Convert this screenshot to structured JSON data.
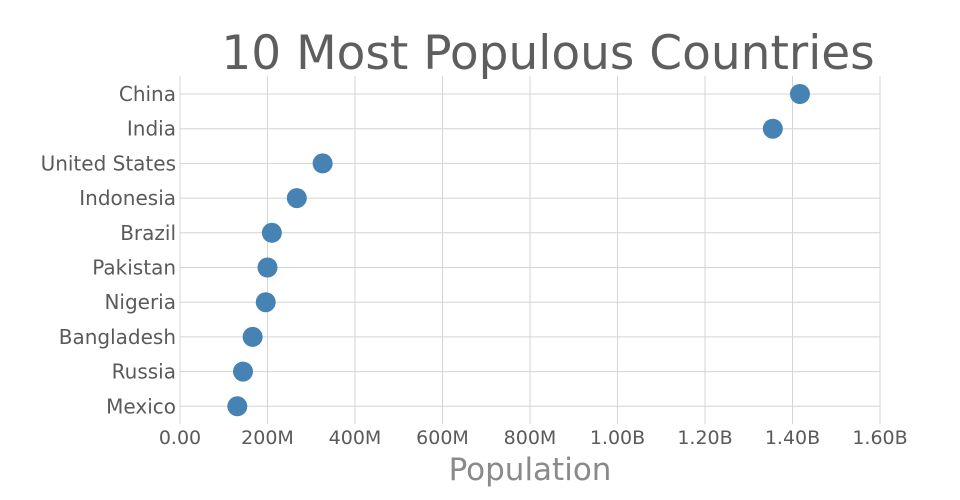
{
  "chart_data": {
    "type": "scatter",
    "title": "10 Most Populous Countries",
    "xlabel": "Population",
    "ylabel": "",
    "categories": [
      "China",
      "India",
      "United States",
      "Indonesia",
      "Brazil",
      "Pakistan",
      "Nigeria",
      "Bangladesh",
      "Russia",
      "Mexico"
    ],
    "values": [
      1417000000,
      1355000000,
      326000000,
      267000000,
      210000000,
      200000000,
      196000000,
      166000000,
      144000000,
      131000000
    ],
    "xlim": [
      0,
      1600000000
    ],
    "xticks": [
      0,
      200000000,
      400000000,
      600000000,
      800000000,
      1000000000,
      1200000000,
      1400000000,
      1600000000
    ],
    "xtick_labels": [
      "0.00",
      "200M",
      "400M",
      "600M",
      "800M",
      "1.00B",
      "1.20B",
      "1.40B",
      "1.60B"
    ],
    "grid": true,
    "marker_color": "#4682b4",
    "legend": "none"
  }
}
